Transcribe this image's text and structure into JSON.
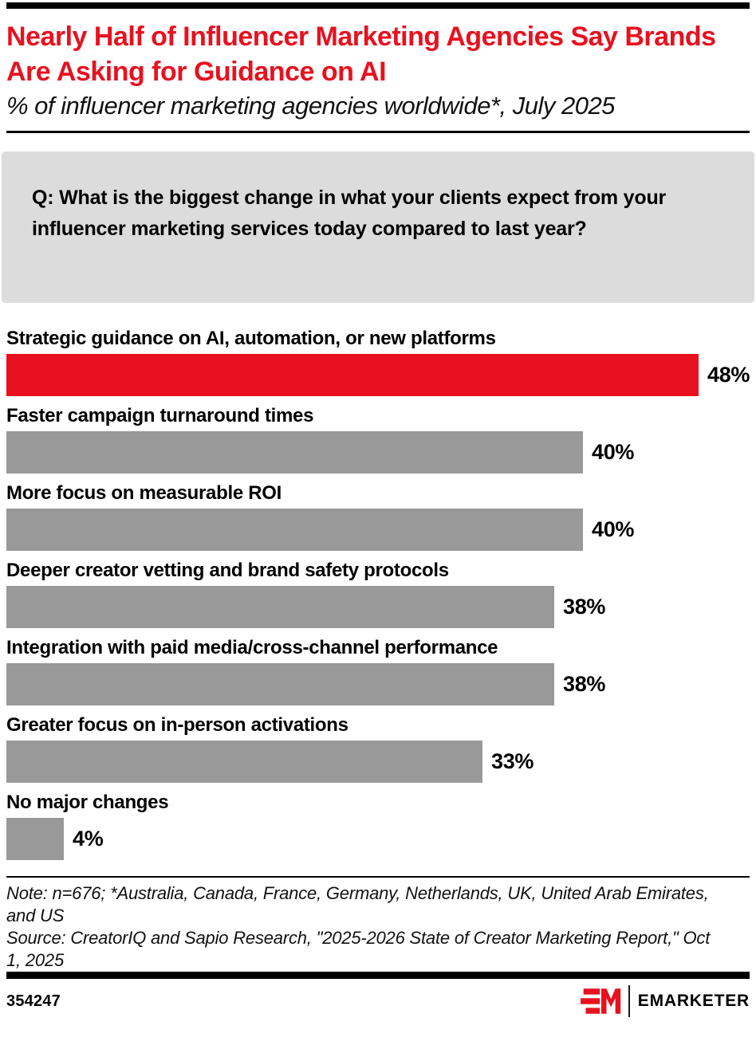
{
  "header": {
    "title": "Nearly Half of Influencer Marketing Agencies Say Brands Are Asking for Guidance on AI",
    "subtitle": "% of influencer marketing agencies worldwide*, July 2025"
  },
  "question": {
    "text": "Q: What is the biggest change in what your clients expect from your influencer marketing services today compared to last year?"
  },
  "chart_data": {
    "type": "bar",
    "orientation": "horizontal",
    "title": "Nearly Half of Influencer Marketing Agencies Say Brands Are Asking for Guidance on AI",
    "subtitle": "% of influencer marketing agencies worldwide*, July 2025",
    "categories": [
      "Strategic guidance on AI, automation, or new platforms",
      "Faster campaign turnaround times",
      "More focus on measurable ROI",
      "Deeper creator vetting and brand safety protocols",
      "Integration with paid media/cross-channel performance",
      "Greater focus on in-person activations",
      "No major changes"
    ],
    "values": [
      48,
      40,
      40,
      38,
      38,
      33,
      4
    ],
    "value_suffix": "%",
    "highlight_index": 0,
    "xlim": [
      0,
      51
    ],
    "grid": false,
    "legend": false,
    "value_labels": "outside-end"
  },
  "footer": {
    "note": "Note: n=676; *Australia, Canada, France, Germany, Netherlands, UK, United Arab Emirates, and US",
    "source": "Source: CreatorIQ and Sapio Research, \"2025-2026 State of Creator Marketing Report,\" Oct 1, 2025",
    "chart_id": "354247",
    "brand": "EMARKETER"
  },
  "colors": {
    "accent_red": "#e8111f",
    "bar_gray": "#999999",
    "question_box_bg": "#dcdcdc",
    "rule_black": "#000000"
  }
}
